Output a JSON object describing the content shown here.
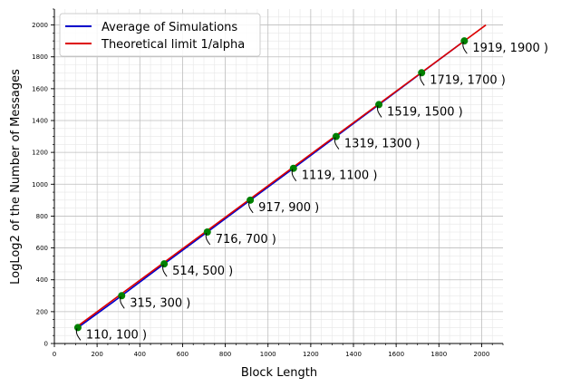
{
  "chart_data": {
    "type": "line",
    "xlabel": "Block Length",
    "ylabel": "LogLog2 of the Number of Messages",
    "xlim": [
      0,
      2100
    ],
    "ylim": [
      0,
      2100
    ],
    "xticks": [
      0,
      200,
      400,
      600,
      800,
      1000,
      1200,
      1400,
      1600,
      1800,
      2000
    ],
    "yticks": [
      0,
      200,
      400,
      600,
      800,
      1000,
      1200,
      1400,
      1600,
      1800,
      2000
    ],
    "grid": true,
    "legend_position": "top-left",
    "series": [
      {
        "name": "Average of Simulations",
        "color": "#0000cc",
        "x": [
          110,
          315,
          514,
          716,
          917,
          1119,
          1319,
          1519,
          1719,
          1919
        ],
        "y": [
          100,
          300,
          500,
          700,
          900,
          1100,
          1300,
          1500,
          1700,
          1900
        ]
      },
      {
        "name": "Theoretical limit 1/alpha",
        "color": "#dd0000",
        "x": [
          110,
          2020
        ],
        "y": [
          110,
          2000
        ]
      }
    ],
    "markers": {
      "color": "#008000",
      "x": [
        110,
        315,
        514,
        716,
        917,
        1119,
        1319,
        1519,
        1719,
        1919
      ],
      "y": [
        100,
        300,
        500,
        700,
        900,
        1100,
        1300,
        1500,
        1700,
        1900
      ]
    },
    "annotations": [
      "110, 100 )",
      "315, 300 )",
      "514, 500 )",
      "716, 700 )",
      "917, 900 )",
      "1119, 1100 )",
      "1319, 1300 )",
      "1519, 1500 )",
      "1719, 1700 )",
      "1919, 1900 )"
    ]
  }
}
